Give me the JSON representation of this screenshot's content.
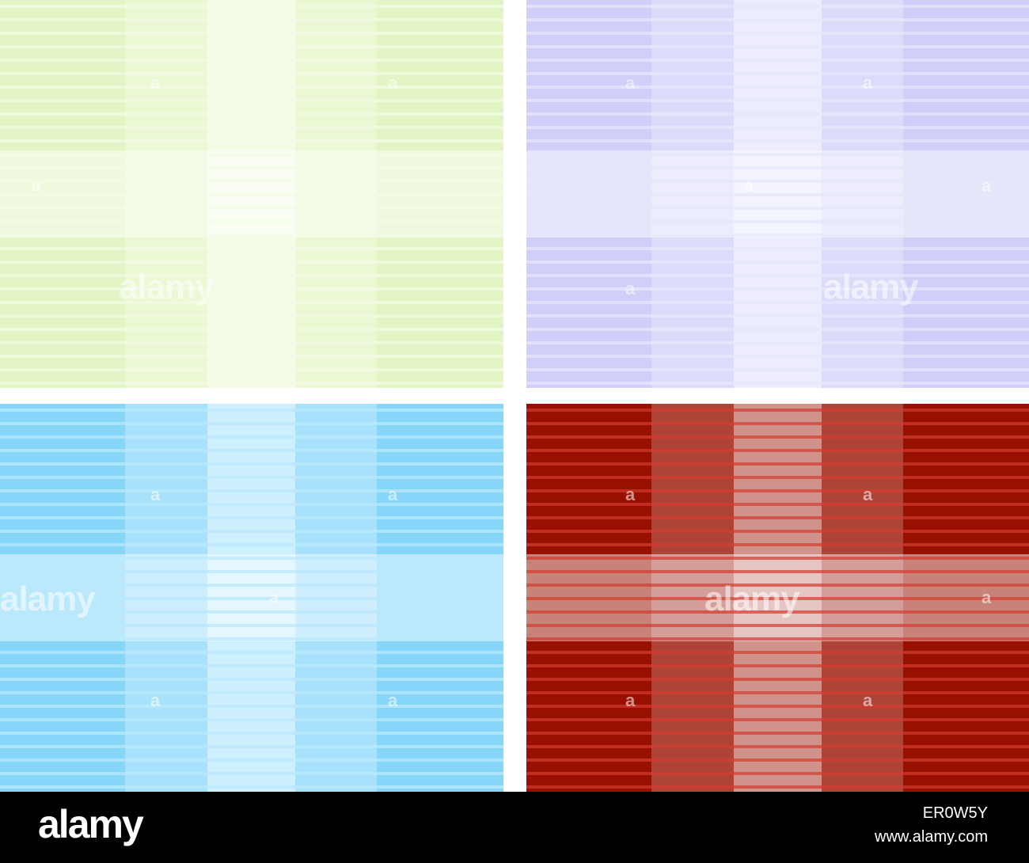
{
  "image": {
    "description_colors": {
      "green": "#e3f5c4",
      "violet": "#cfcff9",
      "blue": "#86d6fa",
      "red": "#981000"
    }
  },
  "panels": [
    {
      "id": "green",
      "base": "#e3f5c4",
      "light": "#f4fce9",
      "lighter": "#fbfef6",
      "stripe": "#f3fbe6"
    },
    {
      "id": "violet",
      "base": "#cfcff9",
      "light": "#e6e6fc",
      "lighter": "#f4f4fe",
      "stripe": "#e7e7fc"
    },
    {
      "id": "blue",
      "base": "#86d6fa",
      "light": "#cdeefd",
      "lighter": "#e4f6fe",
      "stripe": "#b9e8fd"
    },
    {
      "id": "red",
      "base": "#981000",
      "light": "#d89e98",
      "lighter": "#ecd2ce",
      "stripe": "#d43a30"
    }
  ],
  "watermark": {
    "brand": "alamy",
    "letter": "a"
  },
  "footer": {
    "logo": "alamy",
    "image_id": "ER0W5Y",
    "url": "www.alamy.com"
  }
}
